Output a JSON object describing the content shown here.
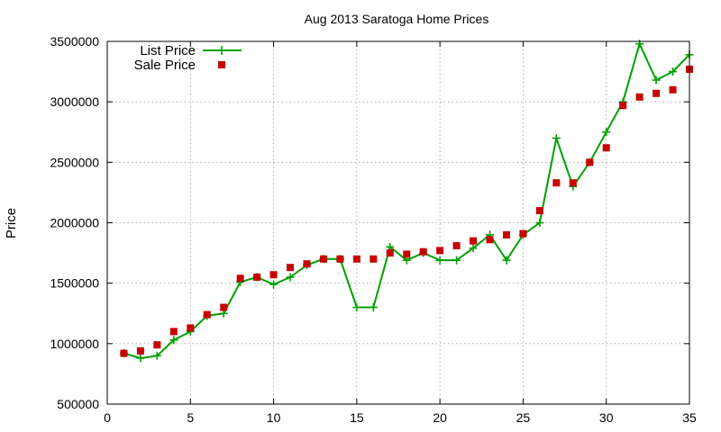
{
  "chart_data": {
    "type": "line",
    "title": "Aug 2013 Saratoga Home Prices",
    "xlabel": "",
    "ylabel": "Price",
    "xlim": [
      0,
      35
    ],
    "ylim": [
      500000,
      3500000
    ],
    "xticks": [
      0,
      5,
      10,
      15,
      20,
      25,
      30,
      35
    ],
    "yticks": [
      500000,
      1000000,
      1500000,
      2000000,
      2500000,
      3000000,
      3500000
    ],
    "grid": true,
    "legend": "top-left",
    "series": [
      {
        "name": "List Price",
        "style": "line-plus",
        "color": "#00a000",
        "x": [
          1,
          2,
          3,
          4,
          5,
          6,
          7,
          8,
          9,
          10,
          11,
          12,
          13,
          14,
          15,
          16,
          17,
          18,
          19,
          20,
          21,
          22,
          23,
          24,
          25,
          26,
          27,
          28,
          29,
          30,
          31,
          32,
          33,
          34,
          35
        ],
        "values": [
          920000,
          880000,
          900000,
          1030000,
          1100000,
          1230000,
          1250000,
          1510000,
          1550000,
          1490000,
          1550000,
          1650000,
          1700000,
          1700000,
          1300000,
          1300000,
          1800000,
          1690000,
          1750000,
          1690000,
          1690000,
          1790000,
          1900000,
          1690000,
          1900000,
          2000000,
          2700000,
          2300000,
          2500000,
          2750000,
          3000000,
          3480000,
          3180000,
          3250000,
          3390000
        ]
      },
      {
        "name": "Sale Price",
        "style": "square",
        "color": "#c80000",
        "x": [
          1,
          2,
          3,
          4,
          5,
          6,
          7,
          8,
          9,
          10,
          11,
          12,
          13,
          14,
          15,
          16,
          17,
          18,
          19,
          20,
          21,
          22,
          23,
          24,
          25,
          26,
          27,
          28,
          29,
          30,
          31,
          32,
          33,
          34,
          35
        ],
        "values": [
          920000,
          940000,
          990000,
          1100000,
          1130000,
          1240000,
          1300000,
          1540000,
          1550000,
          1570000,
          1630000,
          1660000,
          1700000,
          1700000,
          1700000,
          1700000,
          1750000,
          1740000,
          1760000,
          1770000,
          1810000,
          1850000,
          1860000,
          1900000,
          1910000,
          2100000,
          2330000,
          2330000,
          2500000,
          2620000,
          2970000,
          3040000,
          3070000,
          3100000,
          3270000
        ]
      }
    ]
  }
}
